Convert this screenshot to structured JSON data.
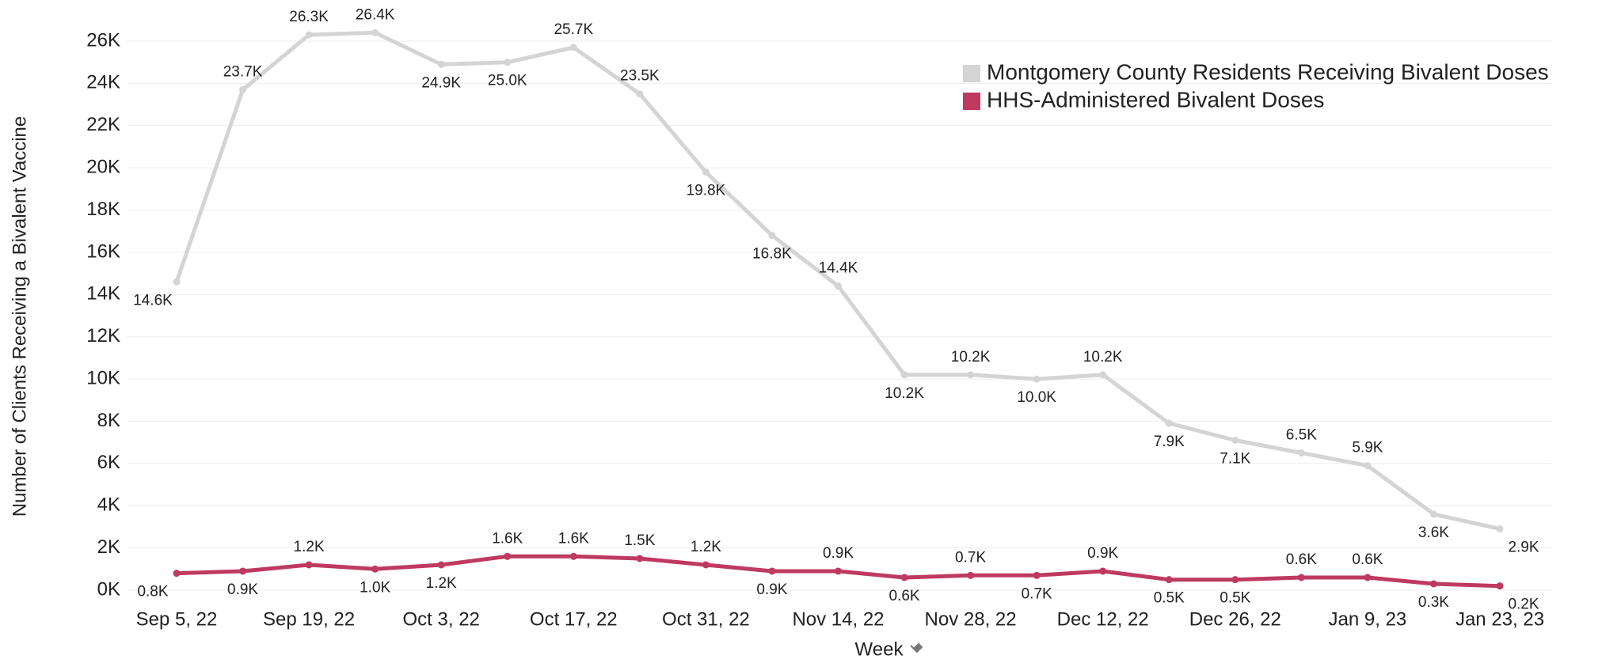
{
  "chart_data": {
    "type": "line",
    "x_label": "Week",
    "y_label": "Number of Clients Receiving a Bivalent Vaccine",
    "categories": [
      "Sep 5, 22",
      null,
      "Sep 19, 22",
      null,
      "Oct 3, 22",
      null,
      "Oct 17, 22",
      null,
      "Oct 31, 22",
      null,
      "Nov 14, 22",
      null,
      "Nov 28, 22",
      null,
      "Dec 12, 22",
      null,
      "Dec 26, 22",
      null,
      "Jan 9, 23",
      null,
      "Jan 23, 23"
    ],
    "series": [
      {
        "name": "Montgomery County Residents Receiving Bivalent Doses",
        "color": "#d4d4d4",
        "values": [
          14600,
          23700,
          26300,
          26400,
          24900,
          25000,
          25700,
          23500,
          19800,
          16800,
          14400,
          10200,
          10200,
          10000,
          10200,
          7900,
          7100,
          6500,
          5900,
          3600,
          2900
        ],
        "value_labels": [
          "14.6K",
          "23.7K",
          "26.3K",
          "26.4K",
          "24.9K",
          "25.0K",
          "25.7K",
          "23.5K",
          "19.8K",
          "16.8K",
          "14.4K",
          "10.2K",
          "10.2K",
          "10.0K",
          "10.2K",
          "7.9K",
          "7.1K",
          "6.5K",
          "5.9K",
          "3.6K",
          "2.9K"
        ]
      },
      {
        "name": "HHS-Administered Bivalent Doses",
        "color": "#bf3a60",
        "values": [
          800,
          900,
          1200,
          1000,
          1200,
          1600,
          1600,
          1500,
          1200,
          900,
          900,
          600,
          700,
          700,
          900,
          500,
          500,
          600,
          600,
          300,
          200
        ],
        "value_labels": [
          "0.8K",
          "0.9K",
          "1.2K",
          "1.0K",
          "1.2K",
          "1.6K",
          "1.6K",
          "1.5K",
          "1.2K",
          "0.9K",
          "0.9K",
          "0.6K",
          "0.7K",
          "0.7K",
          "0.9K",
          "0.5K",
          "0.5K",
          "0.6K",
          "0.6K",
          "0.3K",
          "0.2K"
        ]
      }
    ],
    "ylim": [
      0,
      27000
    ],
    "yticks": [
      {
        "value": 0,
        "label": "0K"
      },
      {
        "value": 2000,
        "label": "2K"
      },
      {
        "value": 4000,
        "label": "4K"
      },
      {
        "value": 6000,
        "label": "6K"
      },
      {
        "value": 8000,
        "label": "8K"
      },
      {
        "value": 10000,
        "label": "10K"
      },
      {
        "value": 12000,
        "label": "12K"
      },
      {
        "value": 14000,
        "label": "14K"
      },
      {
        "value": 16000,
        "label": "16K"
      },
      {
        "value": 18000,
        "label": "18K"
      },
      {
        "value": 20000,
        "label": "20K"
      },
      {
        "value": 22000,
        "label": "22K"
      },
      {
        "value": 24000,
        "label": "24K"
      },
      {
        "value": 26000,
        "label": "26K"
      }
    ],
    "grid": true,
    "legend": "top-right"
  }
}
